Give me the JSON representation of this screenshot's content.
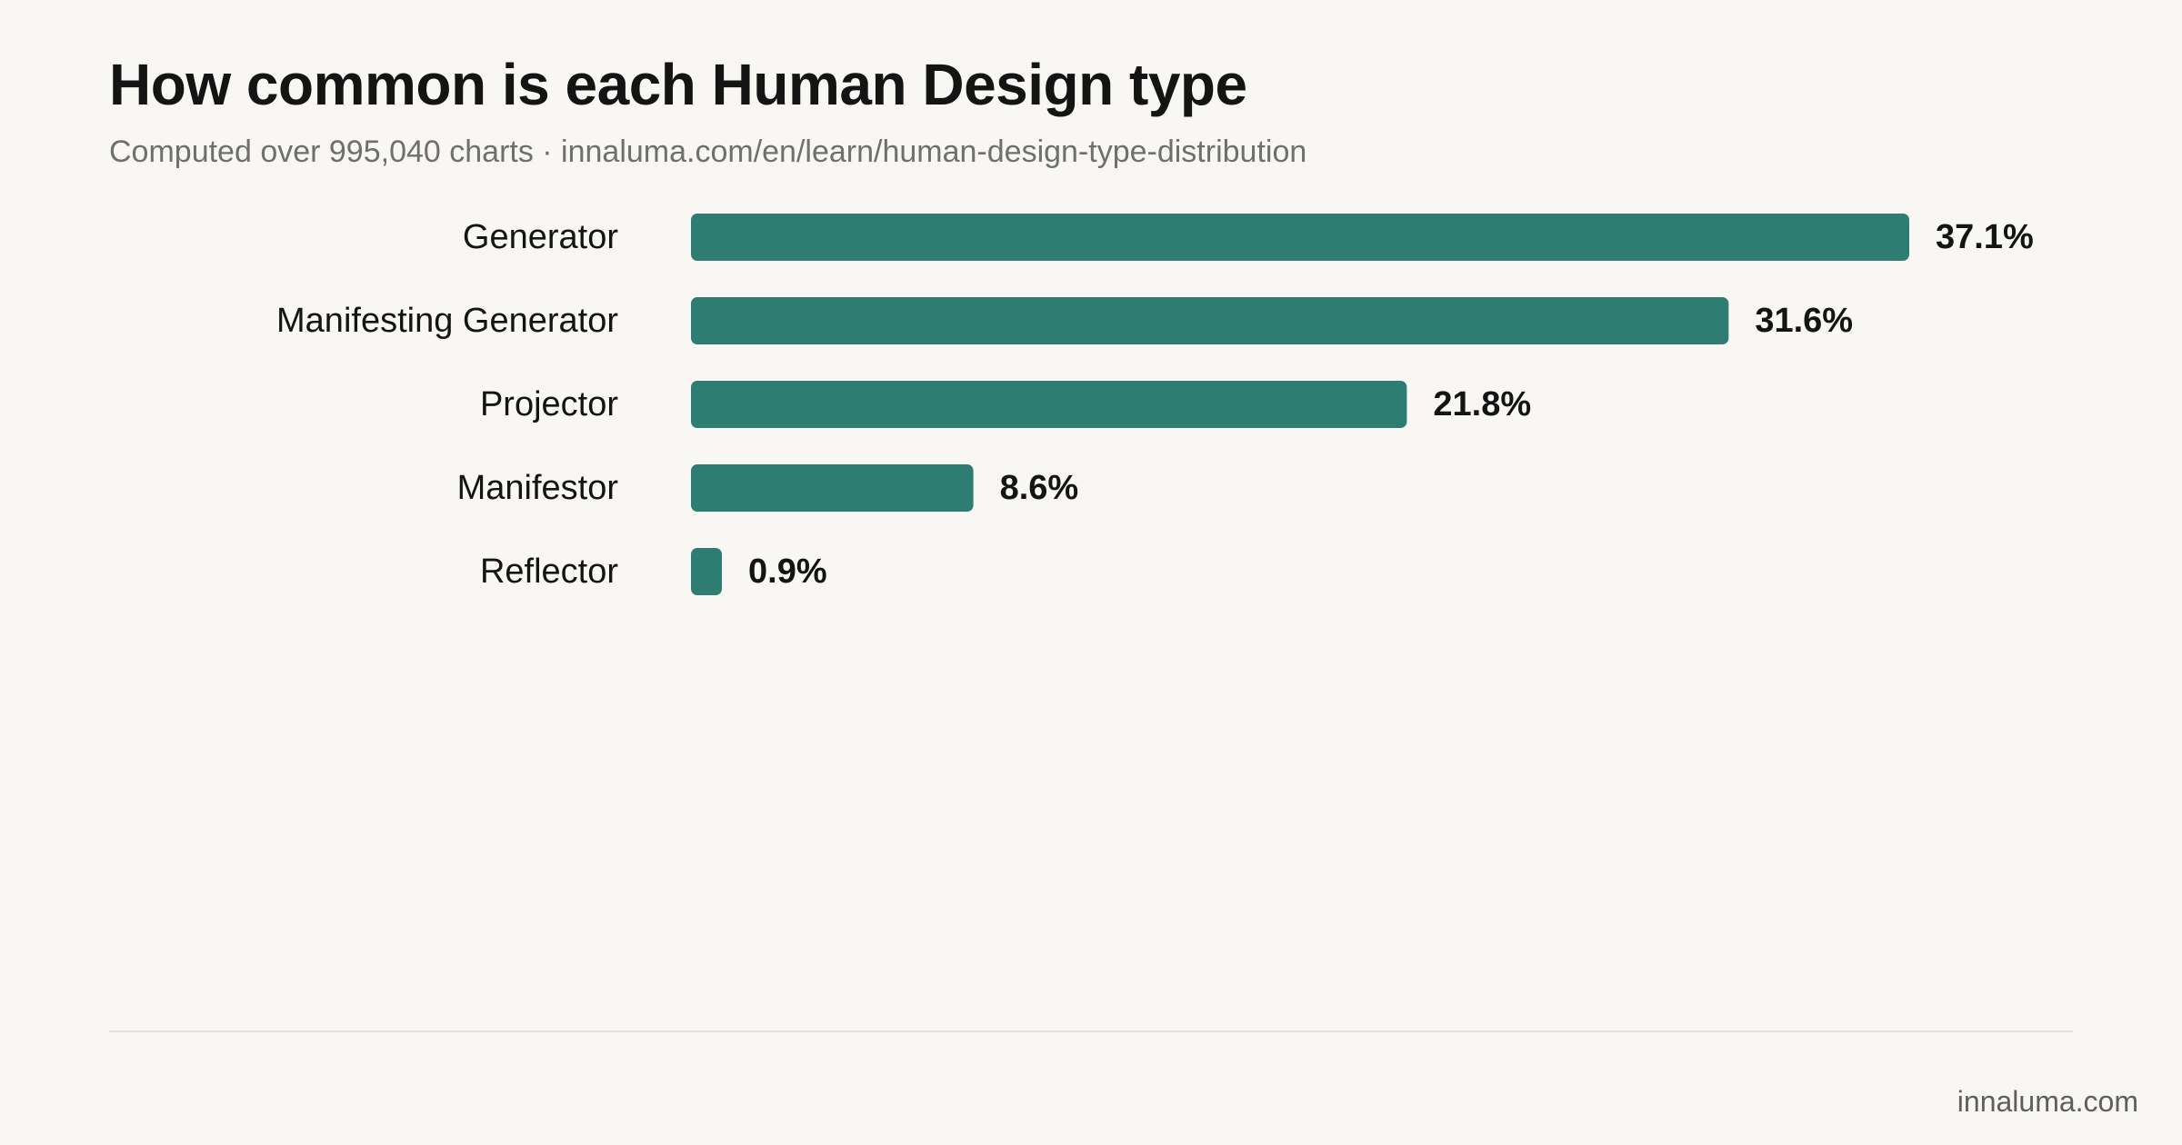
{
  "header": {
    "title": "How common is each Human Design type",
    "subtitle": "Computed over 995,040 charts · innaluma.com/en/learn/human-design-type-distribution"
  },
  "footer": {
    "brand": "innaluma.com"
  },
  "colors": {
    "bar": "#2e7d73",
    "background": "#f8f7f3"
  },
  "chart_data": {
    "type": "bar",
    "orientation": "horizontal",
    "title": "How common is each Human Design type",
    "subtitle": "Computed over 995,040 charts · innaluma.com/en/learn/human-design-type-distribution",
    "categories": [
      "Generator",
      "Manifesting Generator",
      "Projector",
      "Manifestor",
      "Reflector"
    ],
    "values": [
      37.1,
      31.6,
      21.8,
      8.6,
      0.9
    ],
    "value_labels": [
      "37.1%",
      "31.6%",
      "21.8%",
      "8.6%",
      "0.9%"
    ],
    "xlabel": "",
    "ylabel": "",
    "xlim": [
      0,
      37.1
    ],
    "grid": false,
    "legend": "none"
  }
}
